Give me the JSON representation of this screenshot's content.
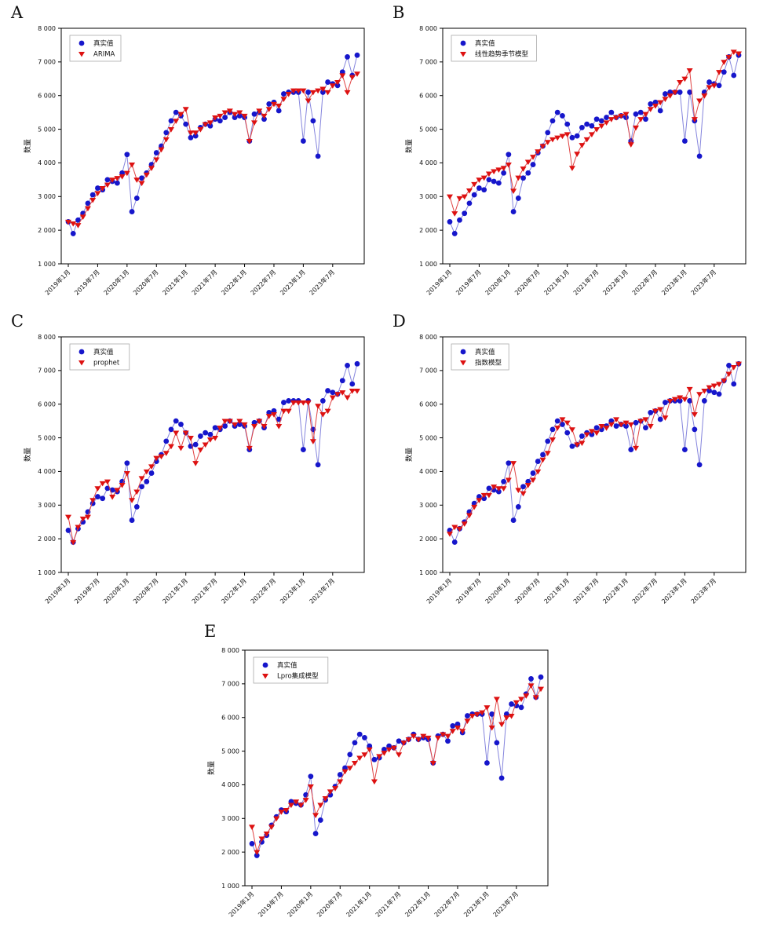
{
  "page": {
    "background": "#ffffff"
  },
  "colors": {
    "actual_marker": "#1616cb",
    "model_marker": "#dd1111",
    "actual_line": "#8585dd",
    "model_line": "#e04444",
    "axis": "#000000",
    "tick_text": "#111111",
    "legend_border": "#aaaaaa",
    "legend_bg": "#ffffff"
  },
  "axes": {
    "ylabel": "数量",
    "ylim": [
      1000,
      8000
    ],
    "y_ticks": [
      [
        1000,
        "1 000"
      ],
      [
        2000,
        "2 000"
      ],
      [
        3000,
        "3 000"
      ],
      [
        4000,
        "4 000"
      ],
      [
        5000,
        "5 000"
      ],
      [
        6000,
        "6 000"
      ],
      [
        7000,
        "7 000"
      ],
      [
        8000,
        "8 000"
      ]
    ],
    "x_tick_month_indices": [
      0,
      6,
      12,
      18,
      24,
      30,
      36,
      42,
      48,
      54
    ],
    "x_tick_labels": [
      "2019年1月",
      "2019年7月",
      "2020年1月",
      "2020年7月",
      "2021年1月",
      "2021年7月",
      "2022年1月",
      "2022年7月",
      "2023年1月",
      "2023年7月"
    ],
    "x_start": "2019-01",
    "x_interval": "1 month",
    "n_points": 60,
    "grid": "off",
    "legend_position": "upper-left"
  },
  "chart_data": [
    {
      "panel": "A",
      "type": "line",
      "legend": [
        "真实值",
        "ARIMA"
      ],
      "series": [
        {
          "name": "真实值",
          "marker": "circle",
          "values": [
            2250,
            1900,
            2300,
            2500,
            2800,
            3050,
            3250,
            3200,
            3500,
            3450,
            3400,
            3700,
            4250,
            2550,
            2950,
            3550,
            3700,
            3950,
            4300,
            4500,
            4900,
            5250,
            5500,
            5400,
            5150,
            4750,
            4800,
            5050,
            5150,
            5100,
            5300,
            5250,
            5350,
            5500,
            5350,
            5400,
            5350,
            4650,
            5450,
            5500,
            5300,
            5750,
            5800,
            5550,
            6050,
            6100,
            6100,
            6100,
            4650,
            6100,
            5250,
            4200,
            6100,
            6400,
            6350,
            6300,
            6700,
            7150,
            6600,
            7200
          ]
        },
        {
          "name": "ARIMA",
          "marker": "triangle-down",
          "values": [
            2250,
            2200,
            2150,
            2400,
            2650,
            2900,
            3100,
            3250,
            3350,
            3500,
            3550,
            3600,
            3700,
            3950,
            3500,
            3400,
            3650,
            3850,
            4100,
            4400,
            4700,
            5000,
            5250,
            5450,
            5600,
            4900,
            4900,
            5000,
            5150,
            5200,
            5350,
            5400,
            5500,
            5550,
            5450,
            5500,
            5400,
            4650,
            5200,
            5550,
            5400,
            5600,
            5750,
            5700,
            5900,
            6050,
            6150,
            6150,
            6150,
            5850,
            6100,
            6150,
            6200,
            6100,
            6300,
            6400,
            6600,
            6100,
            6550,
            6650
          ]
        }
      ]
    },
    {
      "panel": "B",
      "type": "line",
      "legend": [
        "真实值",
        "线性趋势季节模型"
      ],
      "series": [
        {
          "name": "真实值",
          "marker": "circle",
          "values": [
            2250,
            1900,
            2300,
            2500,
            2800,
            3050,
            3250,
            3200,
            3500,
            3450,
            3400,
            3700,
            4250,
            2550,
            2950,
            3550,
            3700,
            3950,
            4300,
            4500,
            4900,
            5250,
            5500,
            5400,
            5150,
            4750,
            4800,
            5050,
            5150,
            5100,
            5300,
            5250,
            5350,
            5500,
            5350,
            5400,
            5350,
            4650,
            5450,
            5500,
            5300,
            5750,
            5800,
            5550,
            6050,
            6100,
            6100,
            6100,
            4650,
            6100,
            5250,
            4200,
            6100,
            6400,
            6350,
            6300,
            6700,
            7150,
            6600,
            7200
          ]
        },
        {
          "name": "线性趋势季节模型",
          "marker": "triangle-down",
          "values": [
            3000,
            2500,
            2950,
            3000,
            3180,
            3370,
            3500,
            3560,
            3680,
            3750,
            3800,
            3850,
            3950,
            3170,
            3560,
            3830,
            4030,
            4180,
            4340,
            4500,
            4620,
            4700,
            4750,
            4800,
            4850,
            3850,
            4270,
            4530,
            4700,
            4850,
            5000,
            5100,
            5200,
            5300,
            5350,
            5400,
            5450,
            4550,
            5050,
            5300,
            5450,
            5600,
            5700,
            5800,
            5900,
            6000,
            6100,
            6400,
            6500,
            6750,
            5300,
            5850,
            6000,
            6250,
            6300,
            6700,
            7000,
            7150,
            7300,
            7250
          ]
        }
      ]
    },
    {
      "panel": "C",
      "type": "line",
      "legend": [
        "真实值",
        "prophet"
      ],
      "series": [
        {
          "name": "真实值",
          "marker": "circle",
          "values": [
            2250,
            1900,
            2300,
            2500,
            2800,
            3050,
            3250,
            3200,
            3500,
            3450,
            3400,
            3700,
            4250,
            2550,
            2950,
            3550,
            3700,
            3950,
            4300,
            4500,
            4900,
            5250,
            5500,
            5400,
            5150,
            4750,
            4800,
            5050,
            5150,
            5100,
            5300,
            5250,
            5350,
            5500,
            5350,
            5400,
            5350,
            4650,
            5450,
            5500,
            5300,
            5750,
            5800,
            5550,
            6050,
            6100,
            6100,
            6100,
            4650,
            6100,
            5250,
            4200,
            6100,
            6400,
            6350,
            6300,
            6700,
            7150,
            6600,
            7200
          ]
        },
        {
          "name": "prophet",
          "marker": "triangle-down",
          "values": [
            2650,
            1900,
            2350,
            2600,
            2650,
            3150,
            3500,
            3650,
            3700,
            3250,
            3450,
            3600,
            3950,
            3150,
            3400,
            3800,
            4000,
            4150,
            4400,
            4450,
            4550,
            4750,
            5150,
            4700,
            5150,
            5000,
            4250,
            4650,
            4800,
            4950,
            5000,
            5300,
            5500,
            5500,
            5400,
            5500,
            5400,
            4700,
            5350,
            5500,
            5350,
            5650,
            5700,
            5350,
            5800,
            5800,
            6050,
            6050,
            6050,
            6050,
            4900,
            5950,
            5700,
            5800,
            6200,
            6300,
            6350,
            6200,
            6400,
            6400
          ]
        }
      ]
    },
    {
      "panel": "D",
      "type": "line",
      "legend": [
        "真实值",
        "指数模型"
      ],
      "series": [
        {
          "name": "真实值",
          "marker": "circle",
          "values": [
            2250,
            1900,
            2300,
            2500,
            2800,
            3050,
            3250,
            3200,
            3500,
            3450,
            3400,
            3700,
            4250,
            2550,
            2950,
            3550,
            3700,
            3950,
            4300,
            4500,
            4900,
            5250,
            5500,
            5400,
            5150,
            4750,
            4800,
            5050,
            5150,
            5100,
            5300,
            5250,
            5350,
            5500,
            5350,
            5400,
            5350,
            4650,
            5450,
            5500,
            5300,
            5750,
            5800,
            5550,
            6050,
            6100,
            6100,
            6100,
            4650,
            6100,
            5250,
            4200,
            6100,
            6400,
            6350,
            6300,
            6700,
            7150,
            6600,
            7200
          ]
        },
        {
          "name": "指数模型",
          "marker": "triangle-down",
          "values": [
            2150,
            2350,
            2300,
            2450,
            2700,
            2950,
            3150,
            3300,
            3300,
            3550,
            3500,
            3500,
            3750,
            4250,
            3450,
            3350,
            3600,
            3750,
            4000,
            4350,
            4550,
            4950,
            5300,
            5550,
            5450,
            5250,
            4800,
            4850,
            5100,
            5200,
            5150,
            5350,
            5300,
            5400,
            5550,
            5400,
            5450,
            5400,
            4700,
            5500,
            5550,
            5350,
            5800,
            5850,
            5600,
            6100,
            6150,
            6200,
            6150,
            6450,
            5700,
            6300,
            6400,
            6500,
            6550,
            6600,
            6700,
            6900,
            7100,
            7200
          ]
        }
      ]
    },
    {
      "panel": "E",
      "type": "line",
      "legend": [
        "真实值",
        "Lpro集成模型"
      ],
      "series": [
        {
          "name": "真实值",
          "marker": "circle",
          "values": [
            2250,
            1900,
            2300,
            2500,
            2800,
            3050,
            3250,
            3200,
            3500,
            3450,
            3400,
            3700,
            4250,
            2550,
            2950,
            3550,
            3700,
            3950,
            4300,
            4500,
            4900,
            5250,
            5500,
            5400,
            5150,
            4750,
            4800,
            5050,
            5150,
            5100,
            5300,
            5250,
            5350,
            5500,
            5350,
            5400,
            5350,
            4650,
            5450,
            5500,
            5300,
            5750,
            5800,
            5550,
            6050,
            6100,
            6100,
            6100,
            4650,
            6100,
            5250,
            4200,
            6100,
            6400,
            6350,
            6300,
            6700,
            7150,
            6600,
            7200
          ]
        },
        {
          "name": "Lpro集成模型",
          "marker": "triangle-down",
          "values": [
            2750,
            2000,
            2400,
            2550,
            2750,
            3000,
            3200,
            3250,
            3400,
            3500,
            3400,
            3550,
            3950,
            3100,
            3400,
            3600,
            3800,
            3900,
            4100,
            4400,
            4500,
            4650,
            4800,
            4900,
            5050,
            4100,
            4850,
            4950,
            5050,
            5100,
            4900,
            5250,
            5350,
            5450,
            5350,
            5450,
            5400,
            4650,
            5400,
            5500,
            5450,
            5600,
            5700,
            5600,
            5900,
            6050,
            6100,
            6150,
            6300,
            5700,
            6550,
            5800,
            6000,
            6050,
            6450,
            6550,
            6650,
            6950,
            6600,
            6850
          ]
        }
      ]
    }
  ]
}
